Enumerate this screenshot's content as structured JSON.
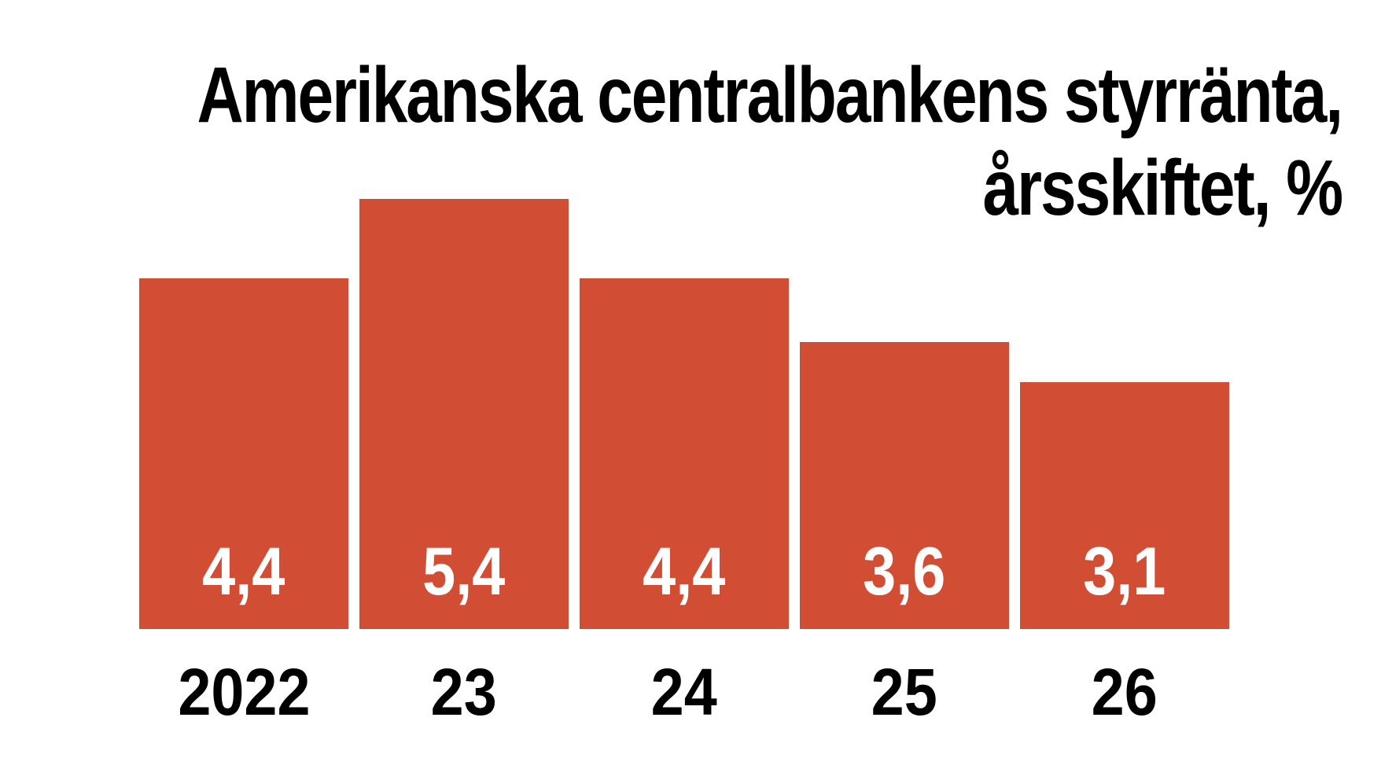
{
  "title": {
    "line1": "Amerikanska centralbankens styrränta,",
    "line2": "årsskiftet, %"
  },
  "chart_data": {
    "type": "bar",
    "categories": [
      "2022",
      "23",
      "24",
      "25",
      "26"
    ],
    "values": [
      4.4,
      5.4,
      4.4,
      3.6,
      3.1
    ],
    "value_labels": [
      "4,4",
      "5,4",
      "4,4",
      "3,6",
      "3,1"
    ],
    "title": "Amerikanska centralbankens styrränta, årsskiftet, %",
    "xlabel": "",
    "ylabel": "",
    "ylim": [
      0,
      5.4
    ],
    "grid": false,
    "legend": false,
    "value_labels_position": "inside-bottom",
    "colors": {
      "bar": "#d14d34",
      "bar_value_text": "#ffffff",
      "title_text": "#000000",
      "axis_text": "#000000",
      "background": "#ffffff"
    }
  }
}
